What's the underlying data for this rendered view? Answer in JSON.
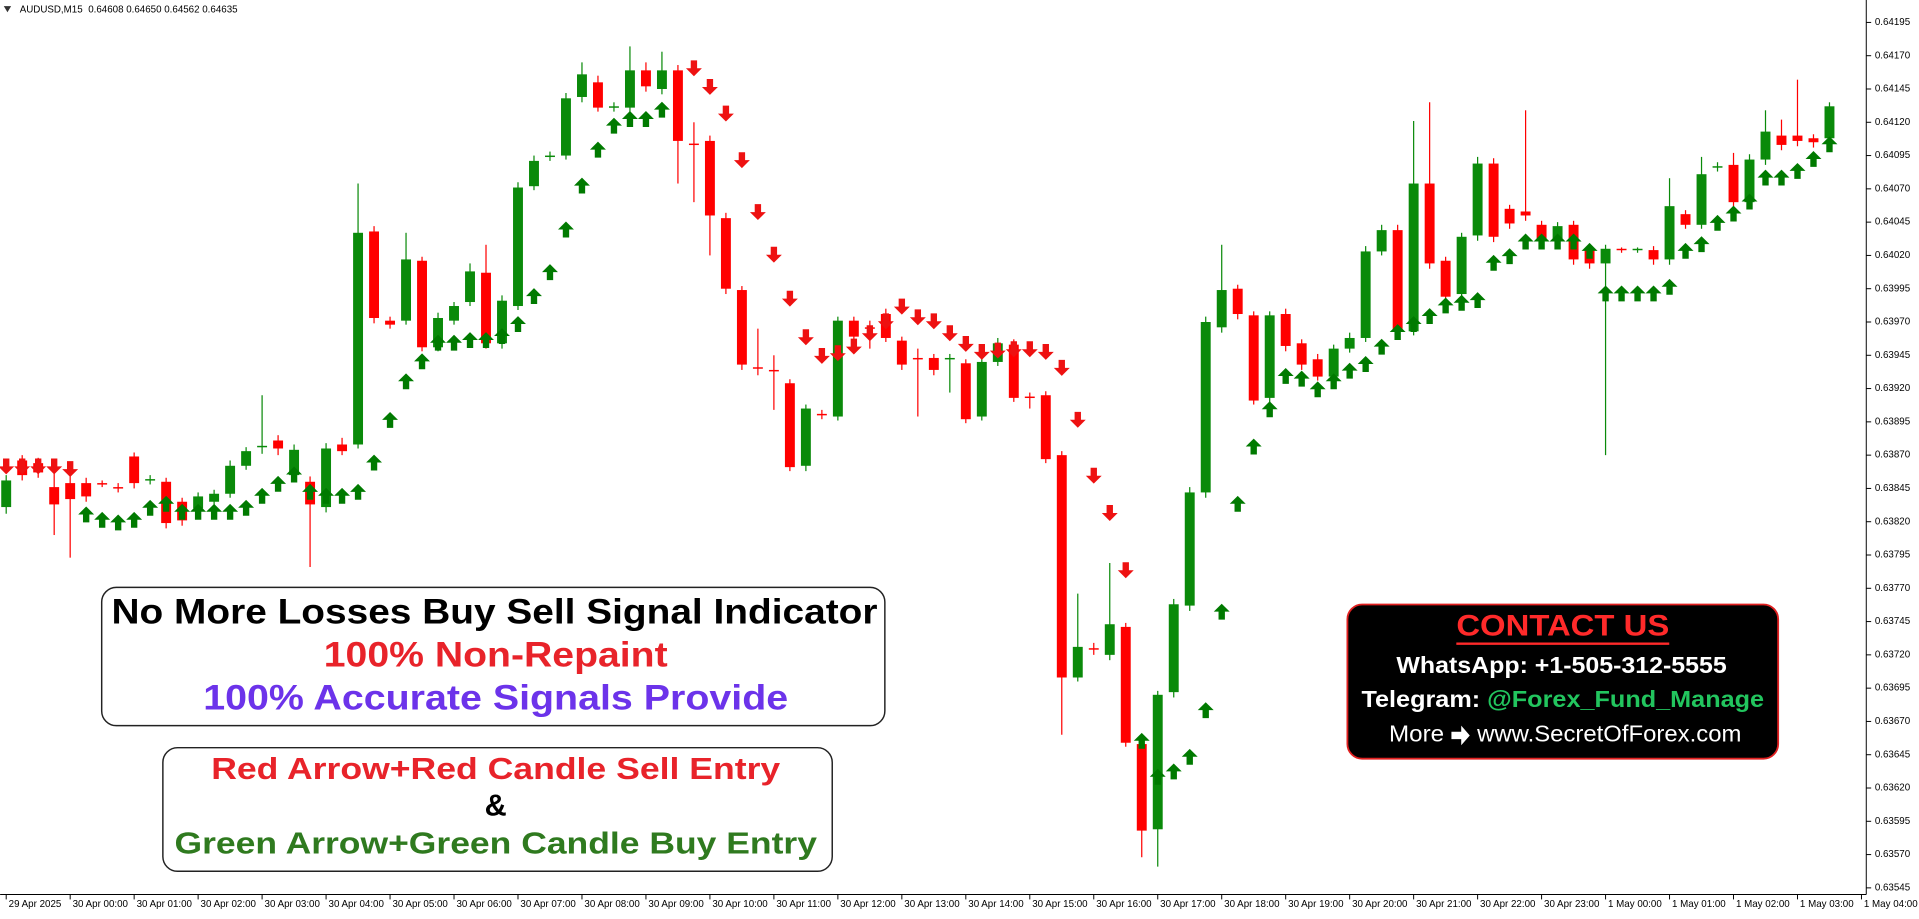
{
  "chart_data": {
    "type": "candlestick",
    "symbol": "AUDUSD,M15",
    "quote": "0.64608 0.64650 0.64562 0.64635",
    "colors": {
      "bull": "#0a8a0a",
      "bear": "#ff0000",
      "buy_arrow": "#007a00",
      "sell_arrow": "#ee1111"
    },
    "grid": false,
    "xlim": [
      -0.38,
      116.3
    ],
    "ylim": [
      0.6354,
      0.6421
    ],
    "yticks": [
      0.64195,
      {
        "value": 0.6417,
        "label": "0.64170"
      },
      0.64145,
      {
        "value": 0.6412,
        "label": "0.64120"
      },
      0.64095,
      {
        "value": 0.6407,
        "label": "0.64070"
      },
      0.64045,
      {
        "value": 0.6402,
        "label": "0.64020"
      },
      0.63995,
      {
        "value": 0.6397,
        "label": "0.63970"
      },
      0.63945,
      {
        "value": 0.6392,
        "label": "0.63920"
      },
      0.63895,
      {
        "value": 0.6387,
        "label": "0.63870"
      },
      0.63845,
      {
        "value": 0.6382,
        "label": "0.63820"
      },
      0.63795,
      {
        "value": 0.6377,
        "label": "0.63770"
      },
      0.63745,
      {
        "value": 0.6372,
        "label": "0.63720"
      },
      0.63695,
      {
        "value": 0.6367,
        "label": "0.63670"
      },
      0.63645,
      {
        "value": 0.6362,
        "label": "0.63620"
      },
      0.63595,
      {
        "value": 0.6357,
        "label": "0.63570"
      },
      0.63545
    ],
    "xticks": [
      {
        "value": 0,
        "label": "29 Apr 2025"
      },
      {
        "value": 4,
        "label": "30 Apr 00:00"
      },
      {
        "value": 8,
        "label": "30 Apr 01:00"
      },
      {
        "value": 12,
        "label": "30 Apr 02:00"
      },
      {
        "value": 16,
        "label": "30 Apr 03:00"
      },
      {
        "value": 20,
        "label": "30 Apr 04:00"
      },
      {
        "value": 24,
        "label": "30 Apr 05:00"
      },
      {
        "value": 28,
        "label": "30 Apr 06:00"
      },
      {
        "value": 32,
        "label": "30 Apr 07:00"
      },
      {
        "value": 36,
        "label": "30 Apr 08:00"
      },
      {
        "value": 40,
        "label": "30 Apr 09:00"
      },
      {
        "value": 44,
        "label": "30 Apr 10:00"
      },
      {
        "value": 48,
        "label": "30 Apr 11:00"
      },
      {
        "value": 52,
        "label": "30 Apr 12:00"
      },
      {
        "value": 56,
        "label": "30 Apr 13:00"
      },
      {
        "value": 60,
        "label": "30 Apr 14:00"
      },
      {
        "value": 64,
        "label": "30 Apr 15:00"
      },
      {
        "value": 68,
        "label": "30 Apr 16:00"
      },
      {
        "value": 72,
        "label": "30 Apr 17:00"
      },
      {
        "value": 76,
        "label": "30 Apr 18:00"
      },
      {
        "value": 80,
        "label": "30 Apr 19:00"
      },
      {
        "value": 84,
        "label": "30 Apr 20:00"
      },
      {
        "value": 88,
        "label": "30 Apr 21:00"
      },
      {
        "value": 92,
        "label": "30 Apr 22:00"
      },
      {
        "value": 96,
        "label": "30 Apr 23:00"
      },
      {
        "value": 100,
        "label": "1 May 00:00"
      },
      {
        "value": 104,
        "label": "1 May 01:00"
      },
      {
        "value": 108,
        "label": "1 May 02:00"
      },
      {
        "value": 112,
        "label": "1 May 03:00"
      },
      {
        "value": 116,
        "label": "1 May 04:00"
      }
    ],
    "ohlc": [
      [
        0.63831,
        0.63855,
        0.63826,
        0.63851
      ],
      [
        0.63866,
        0.6387,
        0.63851,
        0.63855
      ],
      [
        0.63864,
        0.63868,
        0.63853,
        0.63857
      ],
      [
        0.63846,
        0.63867,
        0.6381,
        0.63833
      ],
      [
        0.63849,
        0.63862,
        0.63793,
        0.63837
      ],
      [
        0.63849,
        0.63853,
        0.63835,
        0.63839
      ],
      [
        0.63849,
        0.63851,
        0.63846,
        0.63848
      ],
      [
        0.63846,
        0.63849,
        0.63842,
        0.63845
      ],
      [
        0.63869,
        0.63872,
        0.63845,
        0.63849
      ],
      [
        0.63851,
        0.63855,
        0.63848,
        0.63852
      ],
      [
        0.6385,
        0.63853,
        0.63815,
        0.63819
      ],
      [
        0.63835,
        0.63838,
        0.63817,
        0.63821
      ],
      [
        0.6383,
        0.63842,
        0.63826,
        0.63839
      ],
      [
        0.63835,
        0.63844,
        0.63832,
        0.63841
      ],
      [
        0.63841,
        0.63866,
        0.63838,
        0.63862
      ],
      [
        0.63862,
        0.63876,
        0.63859,
        0.63873
      ],
      [
        0.63876,
        0.63915,
        0.63871,
        0.63877
      ],
      [
        0.63881,
        0.63885,
        0.6387,
        0.63875
      ],
      [
        0.63855,
        0.63878,
        0.63851,
        0.63874
      ],
      [
        0.6385,
        0.63854,
        0.63786,
        0.63833
      ],
      [
        0.63831,
        0.63879,
        0.63827,
        0.63875
      ],
      [
        0.63878,
        0.63883,
        0.6387,
        0.63873
      ],
      [
        0.63878,
        0.64074,
        0.63875,
        0.64037
      ],
      [
        0.64038,
        0.64042,
        0.63969,
        0.63973
      ],
      [
        0.63971,
        0.63974,
        0.63965,
        0.63968
      ],
      [
        0.63971,
        0.64037,
        0.63968,
        0.64017
      ],
      [
        0.64016,
        0.64019,
        0.63948,
        0.63951
      ],
      [
        0.63951,
        0.63977,
        0.63948,
        0.63973
      ],
      [
        0.63971,
        0.63985,
        0.63968,
        0.63982
      ],
      [
        0.63985,
        0.64014,
        0.63982,
        0.64008
      ],
      [
        0.64007,
        0.64028,
        0.6395,
        0.63954
      ],
      [
        0.63954,
        0.6399,
        0.6395,
        0.63986
      ],
      [
        0.63982,
        0.64075,
        0.63979,
        0.64071
      ],
      [
        0.64072,
        0.64095,
        0.64069,
        0.64091
      ],
      [
        0.64094,
        0.64098,
        0.64091,
        0.64095
      ],
      [
        0.64095,
        0.64142,
        0.64092,
        0.64138
      ],
      [
        0.64139,
        0.64165,
        0.64135,
        0.64156
      ],
      [
        0.6415,
        0.64155,
        0.64128,
        0.64131
      ],
      [
        0.64131,
        0.64135,
        0.64128,
        0.64132
      ],
      [
        0.64131,
        0.64177,
        0.64127,
        0.64159
      ],
      [
        0.64159,
        0.64165,
        0.64143,
        0.64147
      ],
      [
        0.64145,
        0.64173,
        0.64141,
        0.64159
      ],
      [
        0.64159,
        0.64163,
        0.64074,
        0.64106
      ],
      [
        0.64104,
        0.6412,
        0.6406,
        0.64103
      ],
      [
        0.64106,
        0.6411,
        0.6402,
        0.6405
      ],
      [
        0.64048,
        0.64052,
        0.63991,
        0.63995
      ],
      [
        0.63994,
        0.63997,
        0.63934,
        0.63938
      ],
      [
        0.63936,
        0.63965,
        0.6393,
        0.63935
      ],
      [
        0.63934,
        0.63945,
        0.63904,
        0.63933
      ],
      [
        0.63924,
        0.63927,
        0.63858,
        0.63861
      ],
      [
        0.63862,
        0.63908,
        0.63858,
        0.63905
      ],
      [
        0.63901,
        0.63904,
        0.63897,
        0.639
      ],
      [
        0.63899,
        0.63974,
        0.63896,
        0.63971
      ],
      [
        0.63971,
        0.63974,
        0.63956,
        0.63959
      ],
      [
        0.63966,
        0.63971,
        0.6395,
        0.63965
      ],
      [
        0.63976,
        0.6398,
        0.63955,
        0.63958
      ],
      [
        0.63956,
        0.63959,
        0.63934,
        0.63938
      ],
      [
        0.63943,
        0.6395,
        0.63899,
        0.63942
      ],
      [
        0.63943,
        0.63946,
        0.6393,
        0.63934
      ],
      [
        0.63942,
        0.63946,
        0.63917,
        0.63943
      ],
      [
        0.63939,
        0.63942,
        0.63894,
        0.63897
      ],
      [
        0.63899,
        0.63943,
        0.63896,
        0.6394
      ],
      [
        0.6394,
        0.63958,
        0.63937,
        0.63954
      ],
      [
        0.63953,
        0.63957,
        0.6391,
        0.63913
      ],
      [
        0.63914,
        0.63917,
        0.63905,
        0.63913
      ],
      [
        0.63915,
        0.63918,
        0.63864,
        0.63867
      ],
      [
        0.6387,
        0.63873,
        0.6366,
        0.63703
      ],
      [
        0.63703,
        0.63766,
        0.637,
        0.63726
      ],
      [
        0.63725,
        0.63729,
        0.6372,
        0.63724
      ],
      [
        0.6372,
        0.63789,
        0.63716,
        0.63743
      ],
      [
        0.63741,
        0.63744,
        0.63651,
        0.63654
      ],
      [
        0.63653,
        0.63656,
        0.63568,
        0.63588
      ],
      [
        0.63589,
        0.63693,
        0.63561,
        0.6369
      ],
      [
        0.63692,
        0.63762,
        0.63688,
        0.63758
      ],
      [
        0.63757,
        0.63846,
        0.63753,
        0.63842
      ],
      [
        0.63842,
        0.63974,
        0.63838,
        0.6397
      ],
      [
        0.63966,
        0.64028,
        0.63962,
        0.63994
      ],
      [
        0.63995,
        0.63998,
        0.63972,
        0.63976
      ],
      [
        0.63975,
        0.63978,
        0.63908,
        0.63911
      ],
      [
        0.63913,
        0.63978,
        0.63909,
        0.63975
      ],
      [
        0.63976,
        0.6398,
        0.63948,
        0.63952
      ],
      [
        0.63954,
        0.63957,
        0.63934,
        0.63938
      ],
      [
        0.63942,
        0.63946,
        0.63926,
        0.63929
      ],
      [
        0.63929,
        0.63953,
        0.63926,
        0.6395
      ],
      [
        0.6395,
        0.63962,
        0.63947,
        0.63958
      ],
      [
        0.63958,
        0.64027,
        0.63955,
        0.64023
      ],
      [
        0.64023,
        0.64043,
        0.6402,
        0.64039
      ],
      [
        0.64039,
        0.64043,
        0.6396,
        0.63963
      ],
      [
        0.63963,
        0.64121,
        0.6396,
        0.64074
      ],
      [
        0.64074,
        0.64135,
        0.6401,
        0.64014
      ],
      [
        0.64016,
        0.64019,
        0.63985,
        0.63989
      ],
      [
        0.63991,
        0.64037,
        0.63988,
        0.64034
      ],
      [
        0.64035,
        0.64094,
        0.64031,
        0.64089
      ],
      [
        0.64089,
        0.64093,
        0.6403,
        0.64034
      ],
      [
        0.64055,
        0.64058,
        0.6404,
        0.64044
      ],
      [
        0.64053,
        0.64129,
        0.64046,
        0.6405
      ],
      [
        0.64043,
        0.64046,
        0.64028,
        0.64032
      ],
      [
        0.64031,
        0.64045,
        0.64028,
        0.64042
      ],
      [
        0.64043,
        0.64046,
        0.64013,
        0.64017
      ],
      [
        0.64025,
        0.64028,
        0.6401,
        0.64014
      ],
      [
        0.64014,
        0.64028,
        0.6387,
        0.64025
      ],
      [
        0.64025,
        0.64026,
        0.64022,
        0.64024
      ],
      [
        0.64024,
        0.64026,
        0.64022,
        0.64025
      ],
      [
        0.64024,
        0.64027,
        0.64013,
        0.64017
      ],
      [
        0.64017,
        0.64078,
        0.64013,
        0.64057
      ],
      [
        0.64051,
        0.64054,
        0.6404,
        0.64043
      ],
      [
        0.64043,
        0.64094,
        0.6404,
        0.64081
      ],
      [
        0.64086,
        0.6409,
        0.64083,
        0.64087
      ],
      [
        0.64088,
        0.64097,
        0.64056,
        0.6406
      ],
      [
        0.6406,
        0.64096,
        0.64056,
        0.64092
      ],
      [
        0.64092,
        0.64129,
        0.64088,
        0.64113
      ],
      [
        0.6411,
        0.64122,
        0.64099,
        0.64103
      ],
      [
        0.6411,
        0.64152,
        0.64102,
        0.64106
      ],
      [
        0.64108,
        0.64111,
        0.64101,
        0.64105
      ],
      [
        0.64108,
        0.64135,
        0.64106,
        0.64132
      ]
    ],
    "buy_arrow": [
      null,
      null,
      null,
      null,
      null,
      0.63825,
      0.63821,
      0.63819,
      0.63821,
      0.6383,
      0.63833,
      0.63827,
      0.63827,
      0.63827,
      0.63827,
      0.6383,
      0.63839,
      0.63848,
      0.63855,
      0.63842,
      0.63839,
      0.63839,
      0.63842,
      0.63864,
      0.63896,
      0.63925,
      0.6394,
      0.63954,
      0.63954,
      0.63956,
      0.63956,
      0.63959,
      0.63968,
      0.63989,
      0.64007,
      0.64039,
      0.64072,
      0.64099,
      0.64117,
      0.64122,
      0.64122,
      0.64129,
      null,
      null,
      null,
      null,
      null,
      null,
      null,
      null,
      null,
      null,
      null,
      null,
      null,
      null,
      null,
      null,
      null,
      null,
      null,
      null,
      null,
      null,
      null,
      null,
      null,
      null,
      null,
      null,
      null,
      0.63655,
      0.63628,
      0.63632,
      0.63643,
      0.63678,
      0.63752,
      0.63833,
      0.63876,
      0.63904,
      0.63929,
      0.63927,
      0.63919,
      0.63925,
      0.63933,
      0.63938,
      0.63951,
      0.63962,
      0.63968,
      0.63974,
      0.63982,
      0.63984,
      0.63986,
      0.64014,
      0.64019,
      0.6403,
      0.6403,
      0.6403,
      0.6403,
      0.64023,
      0.63991,
      0.63991,
      0.63991,
      0.63991,
      0.63996,
      0.64023,
      0.64028,
      0.64044,
      0.64051,
      0.6406,
      0.64078,
      0.64078,
      0.64083,
      0.64092,
      0.64103
    ],
    "sell_arrow": [
      0.63862,
      0.63862,
      0.63862,
      0.63862,
      0.6386,
      null,
      null,
      null,
      null,
      null,
      null,
      null,
      null,
      null,
      null,
      null,
      null,
      null,
      null,
      null,
      null,
      null,
      null,
      null,
      null,
      null,
      null,
      null,
      null,
      null,
      null,
      null,
      null,
      null,
      null,
      null,
      null,
      null,
      null,
      null,
      null,
      null,
      null,
      0.64161,
      0.64147,
      0.64127,
      0.64092,
      0.64053,
      0.64021,
      0.63988,
      0.63959,
      0.63945,
      0.63947,
      0.63952,
      0.63962,
      0.63971,
      0.63982,
      0.63974,
      0.63971,
      0.63962,
      0.63954,
      0.63948,
      0.63949,
      0.6395,
      0.6395,
      0.63948,
      0.63936,
      0.63897,
      0.63855,
      0.63827,
      0.63784,
      null,
      null,
      null,
      null,
      null,
      null,
      null,
      null,
      null,
      null,
      null,
      null,
      null,
      null,
      null,
      null,
      null,
      null,
      null,
      null,
      null,
      null,
      null,
      null,
      null,
      null,
      null,
      null,
      null,
      null,
      null,
      null,
      null,
      null,
      null,
      null,
      null,
      null,
      null,
      null,
      null,
      null,
      null,
      null
    ]
  },
  "info_box": {
    "title": "No More Losses Buy Sell Signal Indicator",
    "subtitle": "100% Non-Repaint",
    "tagline": "100% Accurate Signals Provide"
  },
  "rules_box": {
    "sell": "Red Arrow+Red Candle Sell Entry",
    "and": "&",
    "buy": "Green Arrow+Green Candle Buy Entry"
  },
  "contact": {
    "heading": "CONTACT US",
    "whatsapp": "WhatsApp: +1-505-312-5555",
    "telegram_label": "Telegram: ",
    "telegram_handle": "@Forex_Fund_Manage",
    "more": "More",
    "website": "www.SecretOfForex.com"
  }
}
